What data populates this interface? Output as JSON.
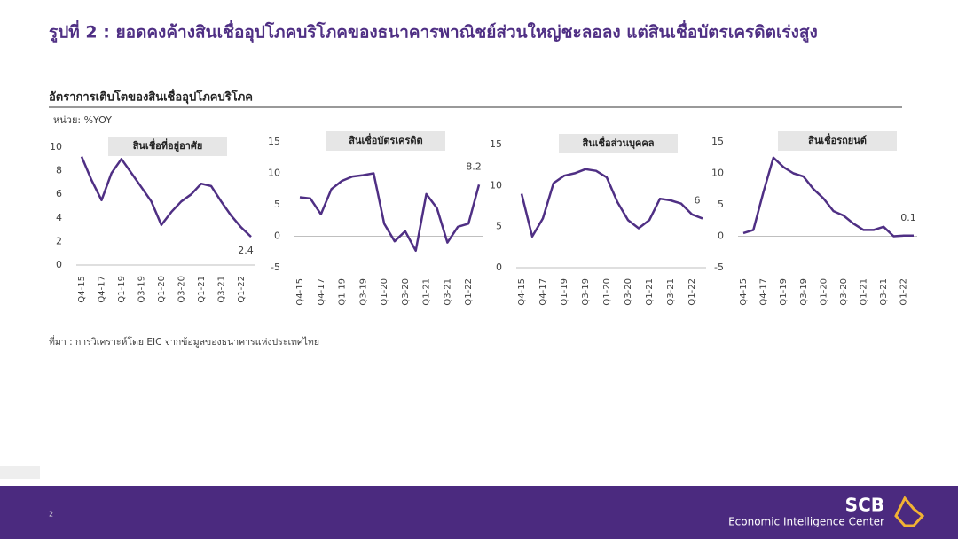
{
  "slide": {
    "title": "รูปที่ 2 : ยอดคงค้างสินเชื่ออุปโภคบริโภคของธนาคารพาณิชย์ส่วนใหญ่ชะลอลง  แต่สินเชื่อบัตรเครดิตเร่งสูง",
    "subtitle": "อัตราการเติบโตของสินเชื่ออุปโภคบริโภค",
    "unit": "หน่วย: %YOY",
    "source": "ที่มา : การวิเคราะห์โดย EIC จากข้อมูลของธนาคารแห่งประเทศไทย",
    "page": "2",
    "brand": "SCB",
    "brand_sub": "Economic Intelligence Center"
  },
  "chart_data": [
    {
      "type": "line",
      "title": "สินเชื่อที่อยู่อาศัย",
      "color": "#4f2f84",
      "categories": [
        "Q4-15",
        null,
        "Q4-17",
        null,
        "Q1-19",
        null,
        "Q3-19",
        null,
        "Q1-20",
        null,
        "Q3-20",
        null,
        "Q1-21",
        null,
        "Q3-21",
        null,
        "Q1-22",
        null
      ],
      "values": [
        9.2,
        7.2,
        5.5,
        7.8,
        9.0,
        7.8,
        6.6,
        5.4,
        3.4,
        4.5,
        5.4,
        6.0,
        6.9,
        6.7,
        5.4,
        4.2,
        3.2,
        2.4
      ],
      "value_labels": [
        null,
        null,
        null,
        null,
        null,
        null,
        null,
        null,
        null,
        null,
        null,
        null,
        null,
        null,
        null,
        null,
        null,
        "2.4"
      ],
      "ylim": [
        0,
        10
      ],
      "yticks": [
        0,
        2,
        4,
        6,
        8,
        10
      ]
    },
    {
      "type": "line",
      "title": "สินเชื่อบัตรเครดิต",
      "color": "#4f2f84",
      "categories": [
        "Q4-15",
        null,
        "Q4-17",
        null,
        "Q1-19",
        null,
        "Q3-19",
        null,
        "Q1-20",
        null,
        "Q3-20",
        null,
        "Q1-21",
        null,
        "Q3-21",
        null,
        "Q1-22",
        null
      ],
      "values": [
        6.2,
        6.0,
        3.5,
        7.5,
        8.8,
        9.5,
        9.7,
        10.0,
        2.0,
        -0.8,
        0.8,
        -2.3,
        6.7,
        4.5,
        -1.0,
        1.5,
        2.0,
        8.2
      ],
      "value_labels": [
        null,
        null,
        null,
        null,
        null,
        null,
        null,
        null,
        null,
        null,
        null,
        null,
        null,
        null,
        null,
        null,
        null,
        "8.2"
      ],
      "ylim": [
        -5,
        15
      ],
      "yticks": [
        -5,
        0,
        5,
        10,
        15
      ]
    },
    {
      "type": "line",
      "title": "สินเชื่อส่วนบุคคล",
      "color": "#4f2f84",
      "categories": [
        "Q4-15",
        null,
        "Q4-17",
        null,
        "Q1-19",
        null,
        "Q3-19",
        null,
        "Q1-20",
        null,
        "Q3-20",
        null,
        "Q1-21",
        null,
        "Q3-21",
        null,
        "Q1-22",
        null
      ],
      "values": [
        9.0,
        3.8,
        6.0,
        10.3,
        11.2,
        11.5,
        12.0,
        11.8,
        11.0,
        8.0,
        5.8,
        4.8,
        5.8,
        8.4,
        8.2,
        7.8,
        6.5,
        6
      ],
      "value_labels": [
        null,
        null,
        null,
        null,
        null,
        null,
        null,
        null,
        null,
        null,
        null,
        null,
        null,
        null,
        null,
        null,
        null,
        "6"
      ],
      "ylim": [
        0,
        15
      ],
      "yticks": [
        0,
        5,
        10,
        15
      ]
    },
    {
      "type": "line",
      "title": "สินเชื่อรถยนต์",
      "color": "#4f2f84",
      "categories": [
        "Q4-15",
        null,
        "Q4-17",
        null,
        "Q1-19",
        null,
        "Q3-19",
        null,
        "Q1-20",
        null,
        "Q3-20",
        null,
        "Q1-21",
        null,
        "Q3-21",
        null,
        "Q1-22",
        null
      ],
      "values": [
        0.5,
        1.0,
        7.0,
        12.5,
        11.0,
        10.0,
        9.5,
        7.5,
        6.0,
        4.0,
        3.3,
        2.0,
        1.0,
        1.0,
        1.5,
        0.0,
        0.1,
        0.1
      ],
      "value_labels": [
        null,
        null,
        null,
        null,
        null,
        null,
        null,
        null,
        null,
        null,
        null,
        null,
        null,
        null,
        null,
        null,
        null,
        "0.1"
      ],
      "ylim": [
        -5,
        15
      ],
      "yticks": [
        -5,
        0,
        5,
        10,
        15
      ]
    }
  ]
}
